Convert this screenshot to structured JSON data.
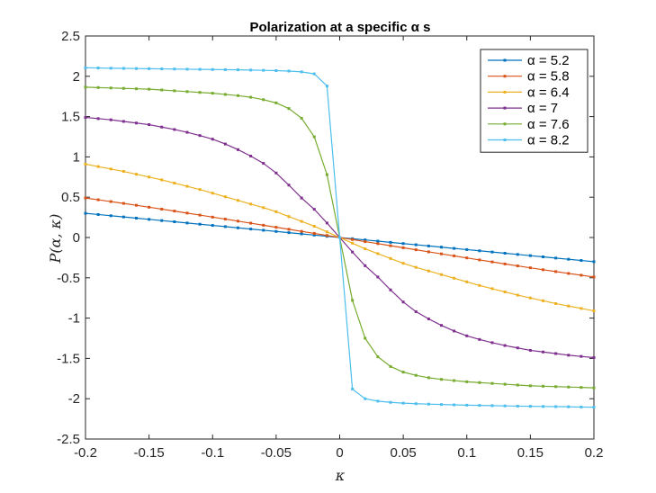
{
  "chart_data": {
    "type": "line",
    "title": "Polarization at a specific α s",
    "xlabel": "κ",
    "ylabel": "P(α, κ)",
    "xlim": [
      -0.2,
      0.2
    ],
    "ylim": [
      -2.5,
      2.5
    ],
    "xticks": [
      "-0.2",
      "-0.15",
      "-0.1",
      "-0.05",
      "0",
      "0.05",
      "0.1",
      "0.15",
      "0.2"
    ],
    "yticks": [
      "2.5",
      "2",
      "1.5",
      "1",
      "0.5",
      "0",
      "-0.5",
      "-1",
      "-1.5",
      "-2",
      "-2.5"
    ],
    "grid": false,
    "legend_position": "top-right",
    "x": [
      -0.2,
      -0.19,
      -0.18,
      -0.17,
      -0.16,
      -0.15,
      -0.14,
      -0.13,
      -0.12,
      -0.11,
      -0.1,
      -0.09,
      -0.08,
      -0.07,
      -0.06,
      -0.05,
      -0.04,
      -0.03,
      -0.02,
      -0.01,
      0,
      0.01,
      0.02,
      0.03,
      0.04,
      0.05,
      0.06,
      0.07,
      0.08,
      0.09,
      0.1,
      0.11,
      0.12,
      0.13,
      0.14,
      0.15,
      0.16,
      0.17,
      0.18,
      0.19,
      0.2
    ],
    "series": [
      {
        "name": "α = 5.2",
        "color": "#0072BD",
        "values": [
          0.3,
          0.285,
          0.27,
          0.255,
          0.24,
          0.225,
          0.21,
          0.195,
          0.18,
          0.165,
          0.15,
          0.135,
          0.12,
          0.105,
          0.09,
          0.075,
          0.06,
          0.045,
          0.03,
          0.015,
          0.0,
          -0.015,
          -0.03,
          -0.045,
          -0.06,
          -0.075,
          -0.09,
          -0.105,
          -0.12,
          -0.135,
          -0.15,
          -0.165,
          -0.18,
          -0.195,
          -0.21,
          -0.225,
          -0.24,
          -0.255,
          -0.27,
          -0.285,
          -0.3
        ]
      },
      {
        "name": "α = 5.8",
        "color": "#D95319",
        "values": [
          0.49,
          0.468,
          0.446,
          0.423,
          0.4,
          0.376,
          0.352,
          0.328,
          0.303,
          0.278,
          0.253,
          0.228,
          0.203,
          0.178,
          0.152,
          0.127,
          0.102,
          0.076,
          0.051,
          0.025,
          0.0,
          -0.025,
          -0.051,
          -0.076,
          -0.102,
          -0.127,
          -0.152,
          -0.178,
          -0.203,
          -0.228,
          -0.253,
          -0.278,
          -0.303,
          -0.328,
          -0.352,
          -0.376,
          -0.4,
          -0.423,
          -0.446,
          -0.468,
          -0.49
        ]
      },
      {
        "name": "α = 6.4",
        "color": "#EDB120",
        "values": [
          0.91,
          0.88,
          0.85,
          0.82,
          0.785,
          0.75,
          0.715,
          0.675,
          0.635,
          0.595,
          0.55,
          0.505,
          0.46,
          0.415,
          0.37,
          0.32,
          0.26,
          0.2,
          0.14,
          0.07,
          0.0,
          -0.07,
          -0.14,
          -0.2,
          -0.26,
          -0.32,
          -0.37,
          -0.415,
          -0.46,
          -0.505,
          -0.55,
          -0.595,
          -0.635,
          -0.675,
          -0.715,
          -0.75,
          -0.785,
          -0.82,
          -0.85,
          -0.88,
          -0.91
        ]
      },
      {
        "name": "α = 7",
        "color": "#7E2F8E",
        "values": [
          1.49,
          1.475,
          1.46,
          1.44,
          1.42,
          1.4,
          1.37,
          1.34,
          1.305,
          1.265,
          1.22,
          1.16,
          1.09,
          1.01,
          0.92,
          0.8,
          0.65,
          0.49,
          0.35,
          0.18,
          0.0,
          -0.18,
          -0.35,
          -0.49,
          -0.65,
          -0.8,
          -0.92,
          -1.01,
          -1.09,
          -1.16,
          -1.22,
          -1.265,
          -1.305,
          -1.34,
          -1.37,
          -1.4,
          -1.42,
          -1.44,
          -1.46,
          -1.475,
          -1.49
        ]
      },
      {
        "name": "α = 7.6",
        "color": "#77AC30",
        "values": [
          1.865,
          1.86,
          1.855,
          1.85,
          1.845,
          1.84,
          1.83,
          1.82,
          1.81,
          1.8,
          1.79,
          1.775,
          1.76,
          1.74,
          1.71,
          1.67,
          1.6,
          1.48,
          1.25,
          0.78,
          0.0,
          -0.78,
          -1.25,
          -1.48,
          -1.6,
          -1.67,
          -1.71,
          -1.74,
          -1.76,
          -1.775,
          -1.79,
          -1.8,
          -1.81,
          -1.82,
          -1.83,
          -1.84,
          -1.845,
          -1.85,
          -1.855,
          -1.86,
          -1.865
        ]
      },
      {
        "name": "α = 8.2",
        "color": "#4DBEEE",
        "values": [
          2.105,
          2.103,
          2.1,
          2.098,
          2.096,
          2.094,
          2.092,
          2.09,
          2.088,
          2.086,
          2.084,
          2.082,
          2.08,
          2.077,
          2.074,
          2.07,
          2.065,
          2.055,
          2.03,
          1.88,
          0.0,
          -1.88,
          -2.0,
          -2.03,
          -2.045,
          -2.055,
          -2.062,
          -2.067,
          -2.072,
          -2.076,
          -2.08,
          -2.083,
          -2.086,
          -2.089,
          -2.092,
          -2.094,
          -2.096,
          -2.098,
          -2.1,
          -2.103,
          -2.105
        ]
      }
    ]
  }
}
